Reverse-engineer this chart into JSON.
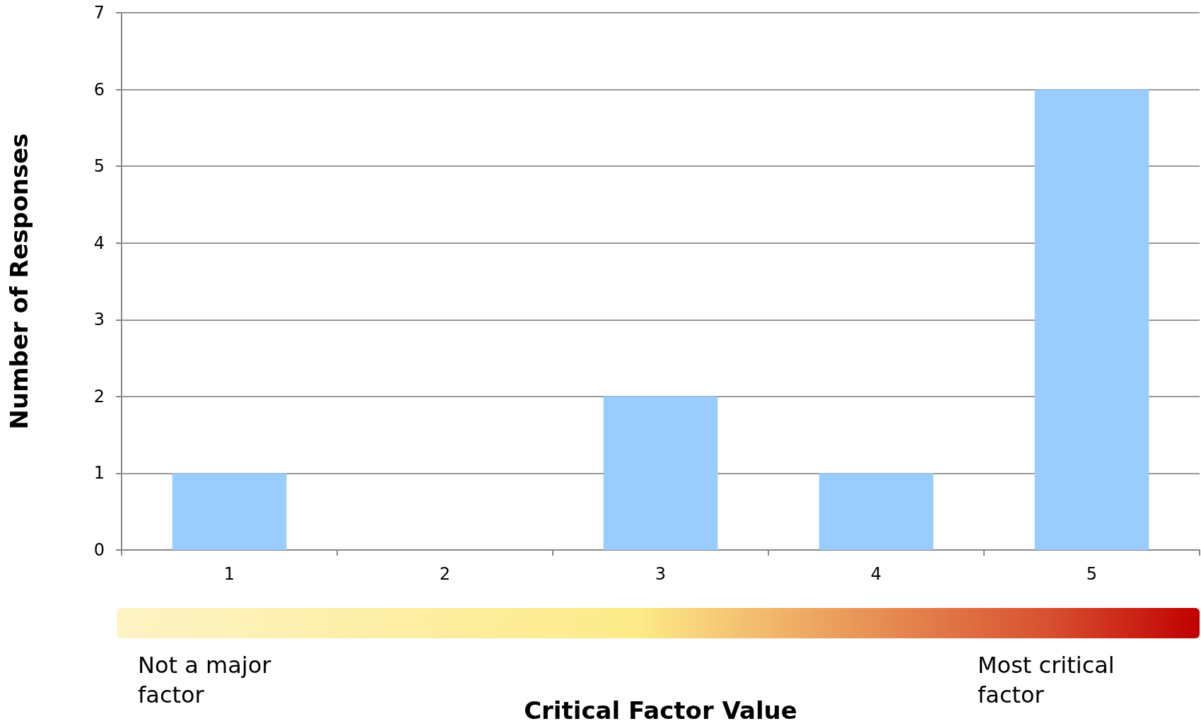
{
  "chart_data": {
    "type": "bar",
    "xlabel": "Critical Factor Value",
    "ylabel": "Number of Responses",
    "categories": [
      "1",
      "2",
      "3",
      "4",
      "5"
    ],
    "values": [
      1,
      0,
      2,
      1,
      6
    ],
    "color": "#99ccff",
    "ylim": [
      0,
      7
    ],
    "yticks": [
      0,
      1,
      2,
      3,
      4,
      5,
      6,
      7
    ],
    "grid": "y",
    "annotations": [
      "Not a major factor",
      "Most critical factor"
    ]
  }
}
